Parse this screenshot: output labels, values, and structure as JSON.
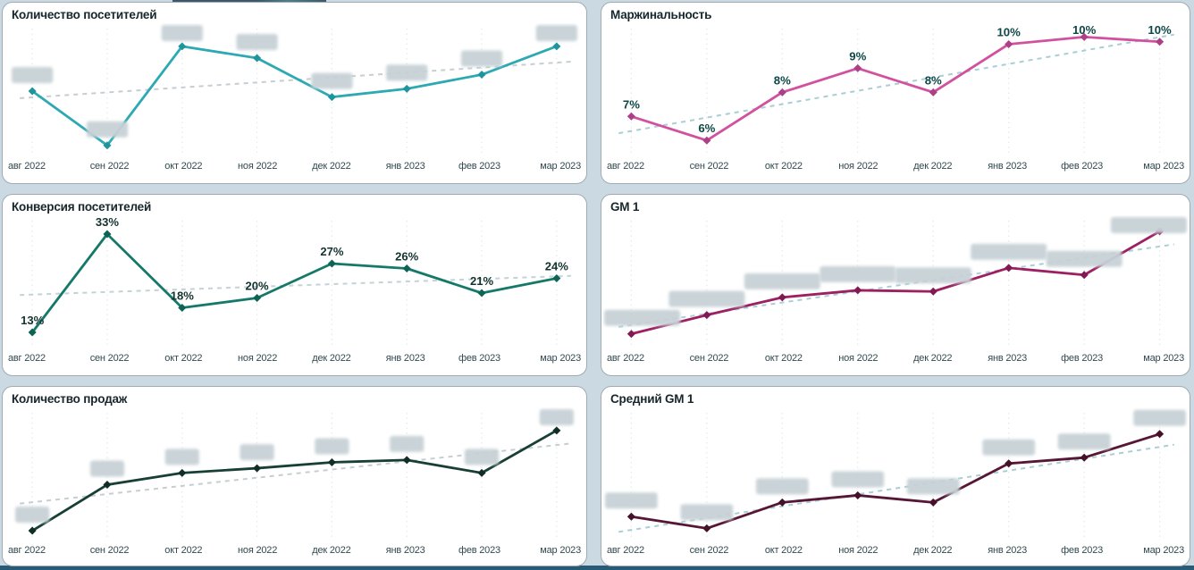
{
  "page": {
    "background_color": "#cbd9e2",
    "bottom_bar_color": "#285c76",
    "top_fragment_color": "#3b586c",
    "card_border_color": "#9fabb1",
    "month_label_color": "#31494e",
    "blob_color": "#c7d1d6"
  },
  "months": [
    "авг 2022",
    "сен 2022",
    "окт 2022",
    "ноя 2022",
    "дек 2022",
    "янв 2023",
    "фев 2023",
    "мар 2023"
  ],
  "chart_data": [
    {
      "type": "line",
      "title": "Количество посетителей",
      "categories": [
        "авг 2022",
        "сен 2022",
        "окт 2022",
        "ноя 2022",
        "дек 2022",
        "янв 2023",
        "фев 2023",
        "мар 2023"
      ],
      "values": [
        50,
        4,
        88,
        78,
        45,
        52,
        64,
        88
      ],
      "labels_hidden": true,
      "blob_width": 46,
      "trend": {
        "start": 44,
        "end": 75
      },
      "ylim": [
        0,
        100
      ],
      "line_color": "#2ca9b2",
      "point_color": "#1f949d",
      "trend_color": "#c7ced2",
      "label_color": "#0d4746",
      "grid": "vertical-dotted",
      "legend": "none"
    },
    {
      "type": "line",
      "title": "Маржинальность",
      "categories": [
        "авг 2022",
        "сен 2022",
        "окт 2022",
        "ноя 2022",
        "дек 2022",
        "янв 2023",
        "фев 2023",
        "мар 2023"
      ],
      "values": [
        7,
        6,
        8,
        9,
        8,
        10,
        10.3,
        10.1
      ],
      "data_labels": [
        "7%",
        "6%",
        "8%",
        "9%",
        "8%",
        "10%",
        "10%",
        "10%"
      ],
      "labels_hidden": false,
      "trend": {
        "start": 6.3,
        "end": 10.4
      },
      "ylim": [
        5.6,
        10.5
      ],
      "line_color": "#d2519e",
      "point_color": "#ad3f87",
      "trend_color": "#a8cfd6",
      "label_color": "#0d4746",
      "grid": "vertical-dotted",
      "legend": "none"
    },
    {
      "type": "line",
      "title": "Конверсия посетителей",
      "categories": [
        "авг 2022",
        "сен 2022",
        "окт 2022",
        "ноя 2022",
        "дек 2022",
        "янв 2023",
        "фев 2023",
        "мар 2023"
      ],
      "values": [
        13,
        33,
        18,
        20,
        27,
        26,
        21,
        24
      ],
      "data_labels": [
        "13%",
        "33%",
        "18%",
        "20%",
        "27%",
        "26%",
        "21%",
        "24%"
      ],
      "labels_hidden": false,
      "trend": {
        "start": 20.6,
        "end": 24.5
      },
      "ylim": [
        11,
        35
      ],
      "line_color": "#15796a",
      "point_color": "#0f6355",
      "trend_color": "#c3d3d6",
      "label_color": "#13332f",
      "grid": "vertical-dotted",
      "legend": "none"
    },
    {
      "type": "line",
      "title": "GM 1",
      "categories": [
        "авг 2022",
        "сен 2022",
        "окт 2022",
        "ноя 2022",
        "дек 2022",
        "янв 2023",
        "фев 2023",
        "мар 2023"
      ],
      "values": [
        7,
        23,
        38,
        44,
        43,
        63,
        57,
        94
      ],
      "labels_hidden": true,
      "blob_width": 84,
      "trend": {
        "start": 13,
        "end": 83
      },
      "ylim": [
        0,
        100
      ],
      "line_color": "#9c2062",
      "point_color": "#811a52",
      "trend_color": "#a8cfd6",
      "label_color": "#0d4746",
      "grid": "vertical-dotted",
      "legend": "none"
    },
    {
      "type": "line",
      "title": "Количество продаж",
      "categories": [
        "авг 2022",
        "сен 2022",
        "окт 2022",
        "ноя 2022",
        "дек 2022",
        "янв 2023",
        "фев 2023",
        "мар 2023"
      ],
      "values": [
        3,
        42,
        52,
        56,
        61,
        63,
        52,
        88
      ],
      "labels_hidden": true,
      "blob_width": 38,
      "trend": {
        "start": 26,
        "end": 77
      },
      "ylim": [
        0,
        100
      ],
      "line_color": "#173f35",
      "point_color": "#102e27",
      "trend_color": "#c7ced2",
      "label_color": "#0d4746",
      "grid": "vertical-dotted",
      "legend": "none"
    },
    {
      "type": "line",
      "title": "Средний GM 1",
      "categories": [
        "авг 2022",
        "сен 2022",
        "окт 2022",
        "ноя 2022",
        "дек 2022",
        "янв 2023",
        "фев 2023",
        "мар 2023"
      ],
      "values": [
        15,
        5,
        27,
        33,
        27,
        60,
        65,
        85
      ],
      "labels_hidden": true,
      "blob_width": 58,
      "trend": {
        "start": 2,
        "end": 76
      },
      "ylim": [
        0,
        100
      ],
      "line_color": "#571635",
      "point_color": "#451029",
      "trend_color": "#a8cfd6",
      "label_color": "#0d4746",
      "grid": "vertical-dotted",
      "legend": "none"
    }
  ]
}
